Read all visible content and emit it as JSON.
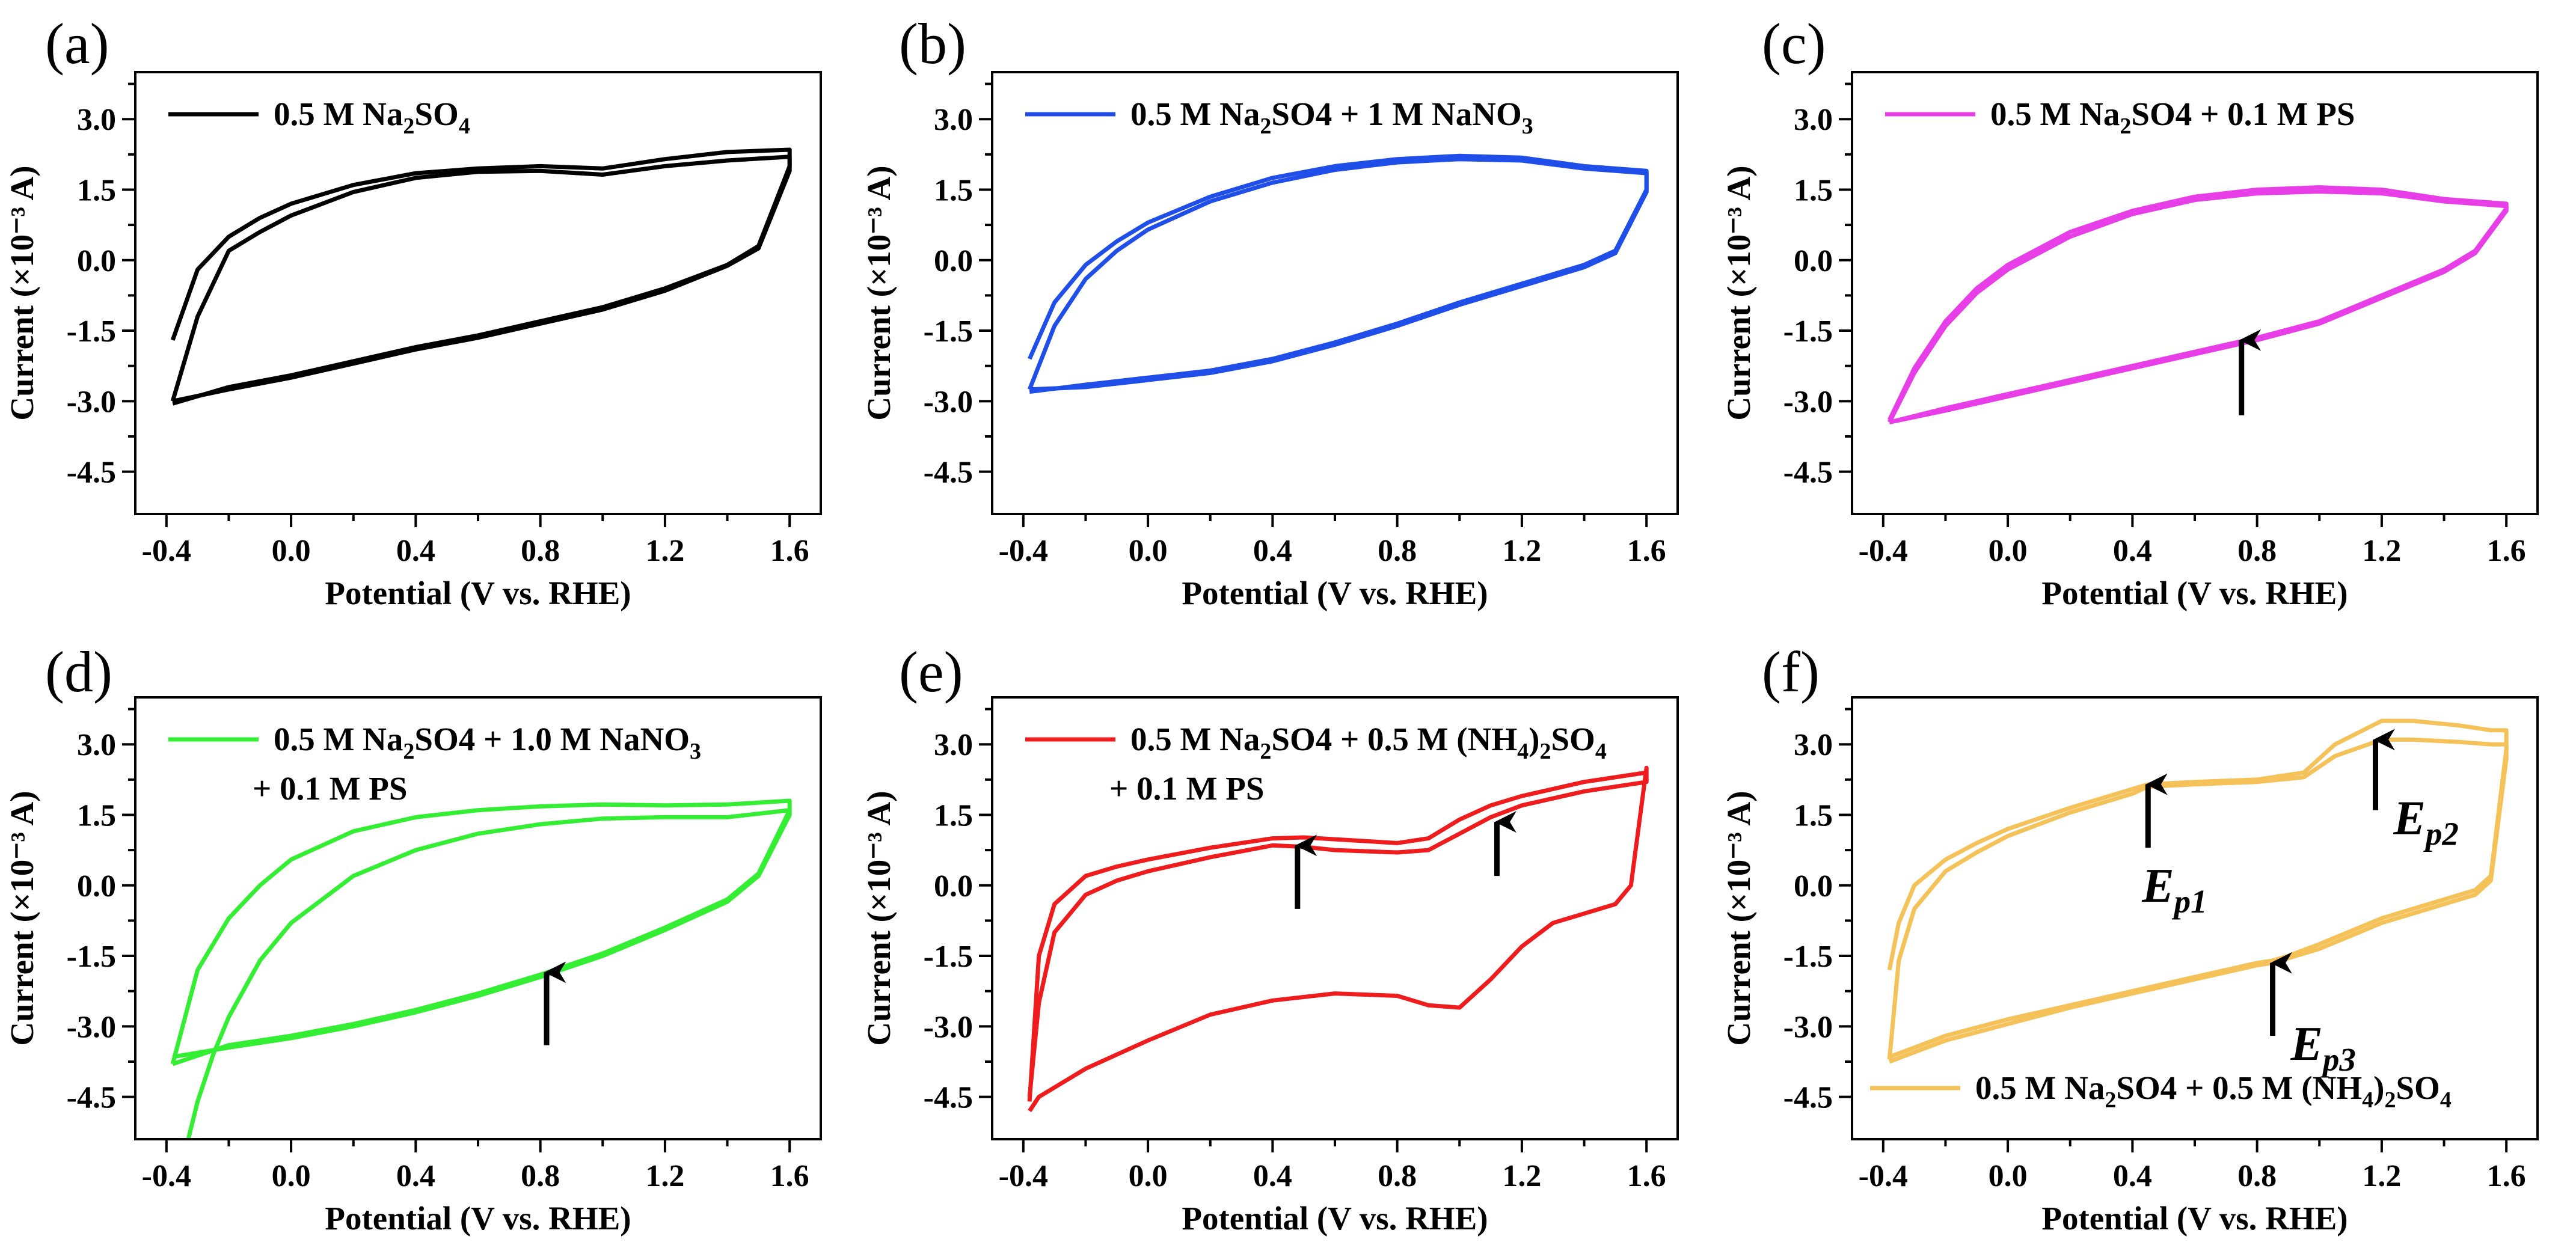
{
  "chart_data": [
    {
      "panel": "(a)",
      "type": "line",
      "xlabel": "Potential (V vs. RHE)",
      "ylabel": "Current (×10⁻³ A)",
      "xlim": [
        -0.5,
        1.7
      ],
      "ylim": [
        -5.4,
        4.0
      ],
      "xticks": [
        "-0.4",
        "0.0",
        "0.4",
        "0.8",
        "1.2",
        "1.6"
      ],
      "yticks": [
        "3.0",
        "1.5",
        "0.0",
        "-1.5",
        "-3.0",
        "-4.5"
      ],
      "legend": {
        "label": "0.5 M Na2SO4",
        "color": "#000000",
        "position": "top-left"
      },
      "series": [
        {
          "name": "0.5 M Na2SO4 (loop 1)",
          "color": "#000000",
          "x": [
            -0.38,
            -0.3,
            -0.2,
            -0.1,
            0.0,
            0.2,
            0.4,
            0.6,
            0.8,
            1.0,
            1.2,
            1.4,
            1.6,
            1.6,
            1.5,
            1.4,
            1.2,
            1.0,
            0.8,
            0.6,
            0.4,
            0.2,
            0.0,
            -0.2,
            -0.38
          ],
          "y": [
            -1.7,
            -0.2,
            0.5,
            0.9,
            1.2,
            1.6,
            1.85,
            1.95,
            2.0,
            1.95,
            2.15,
            2.3,
            2.35,
            2.0,
            0.3,
            -0.1,
            -0.6,
            -1.0,
            -1.3,
            -1.6,
            -1.85,
            -2.15,
            -2.45,
            -2.7,
            -3.05
          ]
        },
        {
          "name": "0.5 M Na2SO4 (loop 2)",
          "color": "#000000",
          "x": [
            -0.38,
            -0.3,
            -0.2,
            -0.1,
            0.0,
            0.2,
            0.4,
            0.6,
            0.8,
            1.0,
            1.2,
            1.4,
            1.6,
            1.6,
            1.5,
            1.4,
            1.2,
            1.0,
            0.8,
            0.6,
            0.4,
            0.2,
            0.0,
            -0.2,
            -0.38
          ],
          "y": [
            -3.0,
            -1.2,
            0.2,
            0.6,
            0.95,
            1.45,
            1.75,
            1.88,
            1.9,
            1.82,
            2.0,
            2.12,
            2.2,
            1.9,
            0.25,
            -0.12,
            -0.65,
            -1.05,
            -1.35,
            -1.65,
            -1.9,
            -2.2,
            -2.5,
            -2.75,
            -3.0
          ]
        }
      ]
    },
    {
      "panel": "(b)",
      "type": "line",
      "xlabel": "Potential (V vs. RHE)",
      "ylabel": "Current (×10⁻³ A)",
      "xlim": [
        -0.5,
        1.7
      ],
      "ylim": [
        -5.4,
        4.0
      ],
      "xticks": [
        "-0.4",
        "0.0",
        "0.4",
        "0.8",
        "1.2",
        "1.6"
      ],
      "yticks": [
        "3.0",
        "1.5",
        "0.0",
        "-1.5",
        "-3.0",
        "-4.5"
      ],
      "legend": {
        "label": "0.5 M Na2SO4 + 1 M NaNO3",
        "color": "#1f4fe8",
        "position": "top-left"
      },
      "series": [
        {
          "name": "loop 1",
          "color": "#1f4fe8",
          "x": [
            -0.38,
            -0.3,
            -0.2,
            -0.1,
            0.0,
            0.2,
            0.4,
            0.6,
            0.8,
            1.0,
            1.2,
            1.4,
            1.6,
            1.6,
            1.5,
            1.4,
            1.2,
            1.0,
            0.8,
            0.6,
            0.4,
            0.2,
            0.0,
            -0.2,
            -0.38
          ],
          "y": [
            -2.1,
            -0.9,
            -0.1,
            0.4,
            0.8,
            1.35,
            1.75,
            2.0,
            2.15,
            2.22,
            2.18,
            2.0,
            1.9,
            1.5,
            0.2,
            -0.1,
            -0.5,
            -0.9,
            -1.35,
            -1.75,
            -2.1,
            -2.35,
            -2.5,
            -2.65,
            -2.8
          ]
        },
        {
          "name": "loop 2",
          "color": "#1f4fe8",
          "x": [
            -0.38,
            -0.3,
            -0.2,
            -0.1,
            0.0,
            0.2,
            0.4,
            0.6,
            0.8,
            1.0,
            1.2,
            1.4,
            1.6,
            1.6,
            1.5,
            1.4,
            1.2,
            1.0,
            0.8,
            0.6,
            0.4,
            0.2,
            0.0,
            -0.2,
            -0.38
          ],
          "y": [
            -2.75,
            -1.4,
            -0.4,
            0.2,
            0.65,
            1.25,
            1.65,
            1.92,
            2.08,
            2.15,
            2.12,
            1.95,
            1.85,
            1.45,
            0.15,
            -0.15,
            -0.55,
            -0.95,
            -1.4,
            -1.8,
            -2.15,
            -2.4,
            -2.55,
            -2.7,
            -2.75
          ]
        }
      ]
    },
    {
      "panel": "(c)",
      "type": "line",
      "xlabel": "Potential (V vs. RHE)",
      "ylabel": "Current (×10⁻³ A)",
      "xlim": [
        -0.5,
        1.7
      ],
      "ylim": [
        -5.4,
        4.0
      ],
      "xticks": [
        "-0.4",
        "0.0",
        "0.4",
        "0.8",
        "1.2",
        "1.6"
      ],
      "yticks": [
        "3.0",
        "1.5",
        "0.0",
        "-1.5",
        "-3.0",
        "-4.5"
      ],
      "legend": {
        "label": "0.5 M Na2SO4 + 0.1 M PS",
        "color": "#e83ee8",
        "position": "top-left"
      },
      "arrow": {
        "x": 0.75,
        "y_tip": -1.7,
        "y_tail": -3.3
      },
      "series": [
        {
          "name": "loop 1",
          "color": "#e83ee8",
          "x": [
            -0.38,
            -0.3,
            -0.2,
            -0.1,
            0.0,
            0.2,
            0.4,
            0.6,
            0.8,
            1.0,
            1.2,
            1.4,
            1.6,
            1.6,
            1.5,
            1.4,
            1.2,
            1.0,
            0.8,
            0.6,
            0.4,
            0.2,
            0.0,
            -0.2,
            -0.38
          ],
          "y": [
            -3.4,
            -2.3,
            -1.3,
            -0.6,
            -0.1,
            0.6,
            1.05,
            1.35,
            1.5,
            1.55,
            1.5,
            1.3,
            1.2,
            1.1,
            0.2,
            -0.2,
            -0.75,
            -1.3,
            -1.65,
            -1.95,
            -2.25,
            -2.55,
            -2.85,
            -3.15,
            -3.45
          ]
        },
        {
          "name": "loop 2",
          "color": "#e83ee8",
          "x": [
            -0.38,
            -0.3,
            -0.2,
            -0.1,
            0.0,
            0.2,
            0.4,
            0.6,
            0.8,
            1.0,
            1.2,
            1.4,
            1.6,
            1.6,
            1.5,
            1.4,
            1.2,
            1.0,
            0.8,
            0.6,
            0.4,
            0.2,
            0.0,
            -0.2,
            -0.38
          ],
          "y": [
            -3.45,
            -2.4,
            -1.4,
            -0.7,
            -0.2,
            0.5,
            0.98,
            1.28,
            1.42,
            1.46,
            1.42,
            1.25,
            1.15,
            1.05,
            0.15,
            -0.25,
            -0.8,
            -1.35,
            -1.7,
            -2.0,
            -2.3,
            -2.6,
            -2.9,
            -3.2,
            -3.45
          ]
        }
      ]
    },
    {
      "panel": "(d)",
      "type": "line",
      "xlabel": "Potential (V vs. RHE)",
      "ylabel": "Current (×10⁻³ A)",
      "xlim": [
        -0.5,
        1.7
      ],
      "ylim": [
        -5.4,
        4.0
      ],
      "xticks": [
        "-0.4",
        "0.0",
        "0.4",
        "0.8",
        "1.2",
        "1.6"
      ],
      "yticks": [
        "3.0",
        "1.5",
        "0.0",
        "-1.5",
        "-3.0",
        "-4.5"
      ],
      "legend": {
        "label": "0.5 M Na2SO4 + 1.0 M NaNO3 + 0.1 M PS",
        "color": "#33ee33",
        "position": "top-left"
      },
      "arrow": {
        "x": 0.82,
        "y_tip": -1.85,
        "y_tail": -3.4
      },
      "series": [
        {
          "name": "loop 1",
          "color": "#33ee33",
          "x": [
            -0.33,
            -0.3,
            -0.25,
            -0.2,
            -0.1,
            0.0,
            0.2,
            0.4,
            0.6,
            0.8,
            1.0,
            1.2,
            1.4,
            1.6,
            1.6,
            1.5,
            1.4,
            1.2,
            1.0,
            0.8,
            0.6,
            0.4,
            0.2,
            0.0,
            -0.2,
            -0.38
          ],
          "y": [
            -5.4,
            -4.6,
            -3.6,
            -2.8,
            -1.6,
            -0.8,
            0.2,
            0.75,
            1.1,
            1.3,
            1.42,
            1.45,
            1.45,
            1.6,
            1.5,
            0.2,
            -0.35,
            -0.95,
            -1.5,
            -1.95,
            -2.35,
            -2.7,
            -3.0,
            -3.25,
            -3.45,
            -3.65
          ]
        },
        {
          "name": "loop 2",
          "color": "#33ee33",
          "x": [
            -0.38,
            -0.3,
            -0.2,
            -0.1,
            0.0,
            0.2,
            0.4,
            0.6,
            0.8,
            1.0,
            1.2,
            1.4,
            1.6,
            1.6,
            1.5,
            1.4,
            1.2,
            1.0,
            0.8,
            0.6,
            0.4,
            0.2,
            0.0,
            -0.2,
            -0.38
          ],
          "y": [
            -3.8,
            -1.8,
            -0.7,
            0.0,
            0.55,
            1.15,
            1.45,
            1.6,
            1.68,
            1.72,
            1.7,
            1.72,
            1.8,
            1.6,
            0.25,
            -0.3,
            -0.9,
            -1.45,
            -1.9,
            -2.3,
            -2.65,
            -2.95,
            -3.2,
            -3.4,
            -3.8
          ]
        }
      ]
    },
    {
      "panel": "(e)",
      "type": "line",
      "xlabel": "Potential (V vs. RHE)",
      "ylabel": "Current (×10⁻³ A)",
      "xlim": [
        -0.5,
        1.7
      ],
      "ylim": [
        -5.4,
        4.0
      ],
      "xticks": [
        "-0.4",
        "0.0",
        "0.4",
        "0.8",
        "1.2",
        "1.6"
      ],
      "yticks": [
        "3.0",
        "1.5",
        "0.0",
        "-1.5",
        "-3.0",
        "-4.5"
      ],
      "legend": {
        "label": "0.5 M Na2SO4 + 0.5 M (NH4)2SO4 + 0.1 M PS",
        "color": "#ee1c1c",
        "position": "top-left"
      },
      "arrows": [
        {
          "x": 0.48,
          "y_tip": 0.85,
          "y_tail": -0.5
        },
        {
          "x": 1.12,
          "y_tip": 1.35,
          "y_tail": 0.2
        }
      ],
      "series": [
        {
          "name": "loop 1",
          "color": "#ee1c1c",
          "x": [
            -0.38,
            -0.35,
            -0.3,
            -0.2,
            -0.1,
            0.0,
            0.2,
            0.4,
            0.5,
            0.6,
            0.8,
            0.9,
            1.0,
            1.1,
            1.2,
            1.4,
            1.6,
            1.6,
            1.55,
            1.5,
            1.4,
            1.3,
            1.2,
            1.1,
            1.0,
            0.9,
            0.8,
            0.6,
            0.4,
            0.2,
            0.0,
            -0.2,
            -0.35,
            -0.38
          ],
          "y": [
            -4.5,
            -2.5,
            -1.0,
            -0.2,
            0.1,
            0.3,
            0.6,
            0.85,
            0.82,
            0.75,
            0.7,
            0.75,
            1.1,
            1.45,
            1.7,
            2.0,
            2.2,
            2.5,
            0.0,
            -0.4,
            -0.6,
            -0.8,
            -1.3,
            -2.0,
            -2.6,
            -2.55,
            -2.35,
            -2.3,
            -2.45,
            -2.75,
            -3.3,
            -3.9,
            -4.5,
            -4.8
          ]
        },
        {
          "name": "loop 2",
          "color": "#ee1c1c",
          "x": [
            -0.38,
            -0.35,
            -0.3,
            -0.2,
            -0.1,
            0.0,
            0.2,
            0.4,
            0.5,
            0.6,
            0.8,
            0.9,
            1.0,
            1.1,
            1.2,
            1.4,
            1.6
          ],
          "y": [
            -4.6,
            -1.5,
            -0.4,
            0.2,
            0.4,
            0.55,
            0.8,
            1.0,
            1.02,
            0.98,
            0.9,
            1.0,
            1.4,
            1.7,
            1.9,
            2.2,
            2.4
          ]
        }
      ]
    },
    {
      "panel": "(f)",
      "type": "line",
      "xlabel": "Potential (V vs. RHE)",
      "ylabel": "Current (×10⁻³ A)",
      "xlim": [
        -0.5,
        1.7
      ],
      "ylim": [
        -5.4,
        4.0
      ],
      "xticks": [
        "-0.4",
        "0.0",
        "0.4",
        "0.8",
        "1.2",
        "1.6"
      ],
      "yticks": [
        "3.0",
        "1.5",
        "0.0",
        "-1.5",
        "-3.0",
        "-4.5"
      ],
      "legend": {
        "label": "0.5 M Na2SO4 + 0.5 M (NH4)2SO4",
        "color": "#f5c25a",
        "position": "bottom-right"
      },
      "annotations": [
        {
          "label": "Ep1",
          "x": 0.45,
          "y_tip": 2.15,
          "y_tail": 0.8
        },
        {
          "label": "Ep2",
          "x": 1.18,
          "y_tip": 3.1,
          "y_tail": 1.6
        },
        {
          "label": "Ep3",
          "x": 0.85,
          "y_tip": -1.65,
          "y_tail": -3.2
        }
      ],
      "series": [
        {
          "name": "loop 1",
          "color": "#f5c25a",
          "x": [
            -0.38,
            -0.35,
            -0.3,
            -0.2,
            -0.1,
            0.0,
            0.2,
            0.4,
            0.45,
            0.6,
            0.8,
            0.95,
            1.05,
            1.2,
            1.3,
            1.45,
            1.55,
            1.6,
            1.6,
            1.55,
            1.5,
            1.4,
            1.2,
            1.0,
            0.9,
            0.85,
            0.8,
            0.6,
            0.4,
            0.2,
            0.0,
            -0.2,
            -0.38
          ],
          "y": [
            -1.8,
            -0.8,
            0.0,
            0.55,
            0.9,
            1.2,
            1.65,
            2.05,
            2.15,
            2.2,
            2.25,
            2.4,
            3.0,
            3.5,
            3.5,
            3.4,
            3.3,
            3.3,
            2.9,
            0.2,
            -0.1,
            -0.3,
            -0.7,
            -1.25,
            -1.5,
            -1.6,
            -1.65,
            -1.95,
            -2.25,
            -2.55,
            -2.85,
            -3.2,
            -3.65
          ]
        },
        {
          "name": "loop 2",
          "color": "#f5c25a",
          "x": [
            -0.38,
            -0.35,
            -0.3,
            -0.2,
            -0.1,
            0.0,
            0.2,
            0.4,
            0.45,
            0.6,
            0.8,
            0.95,
            1.05,
            1.2,
            1.3,
            1.45,
            1.55,
            1.6,
            1.6,
            1.55,
            1.5,
            1.4,
            1.2,
            1.0,
            0.9,
            0.85,
            0.8,
            0.6,
            0.4,
            0.2,
            0.0,
            -0.2,
            -0.38
          ],
          "y": [
            -3.7,
            -1.6,
            -0.5,
            0.3,
            0.7,
            1.05,
            1.55,
            1.95,
            2.1,
            2.15,
            2.2,
            2.3,
            2.75,
            3.1,
            3.1,
            3.05,
            3.0,
            3.0,
            2.7,
            0.1,
            -0.2,
            -0.4,
            -0.8,
            -1.35,
            -1.55,
            -1.65,
            -1.7,
            -2.0,
            -2.3,
            -2.6,
            -2.95,
            -3.3,
            -3.75
          ]
        }
      ]
    }
  ]
}
